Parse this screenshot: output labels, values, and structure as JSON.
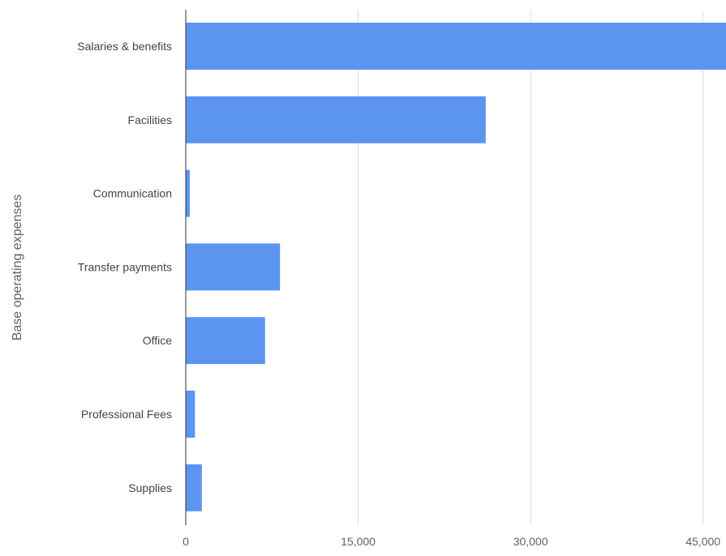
{
  "chart_data": {
    "type": "bar",
    "orientation": "horizontal",
    "ylabel": "Base operating expenses",
    "xlabel": "",
    "categories": [
      "Salaries & benefits",
      "Facilities",
      "Communication",
      "Transfer payments",
      "Office",
      "Professional Fees",
      "Supplies"
    ],
    "values": [
      47500,
      26100,
      350,
      8200,
      6900,
      800,
      1400
    ],
    "xlim": [
      0,
      47000
    ],
    "xticks": [
      0,
      15000,
      30000,
      45000
    ],
    "xtick_labels": [
      "0",
      "15,000",
      "30,000",
      "45,000"
    ],
    "grid": true,
    "legend": "none",
    "bar_color": "#5b95f0",
    "grid_color": "#dcdcdc",
    "axis_color": "#333333"
  }
}
